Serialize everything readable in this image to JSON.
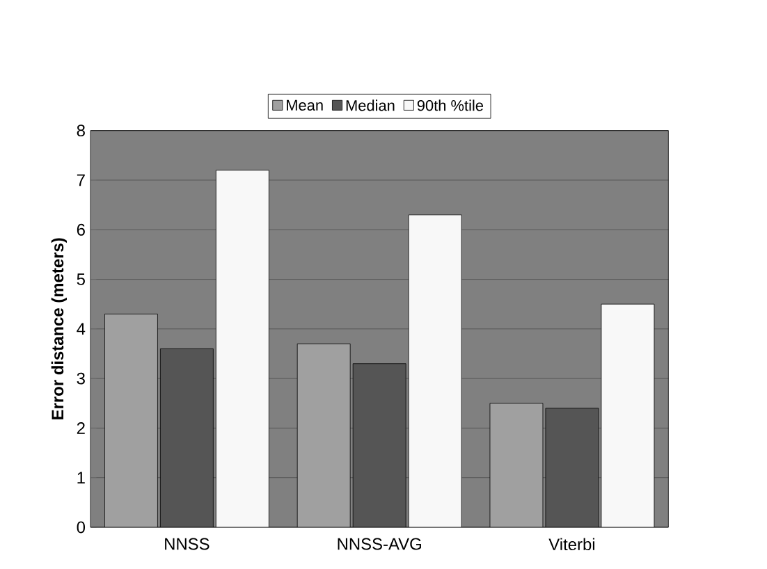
{
  "chart_data": {
    "type": "bar",
    "ylabel": "Error distance (meters)",
    "categories": [
      "NNSS",
      "NNSS-AVG",
      "Viterbi"
    ],
    "series": [
      {
        "name": "Mean",
        "color": "#a0a0a0",
        "values": [
          4.3,
          3.7,
          2.5
        ]
      },
      {
        "name": "Median",
        "color": "#555555",
        "values": [
          3.6,
          3.3,
          2.4
        ]
      },
      {
        "name": "90th %tile",
        "color": "#f8f8f8",
        "values": [
          7.2,
          6.3,
          4.5
        ]
      }
    ],
    "ylim": [
      0,
      8
    ],
    "yticks": [
      0,
      1,
      2,
      3,
      4,
      5,
      6,
      7,
      8
    ],
    "grid": "y",
    "legend": "top"
  }
}
